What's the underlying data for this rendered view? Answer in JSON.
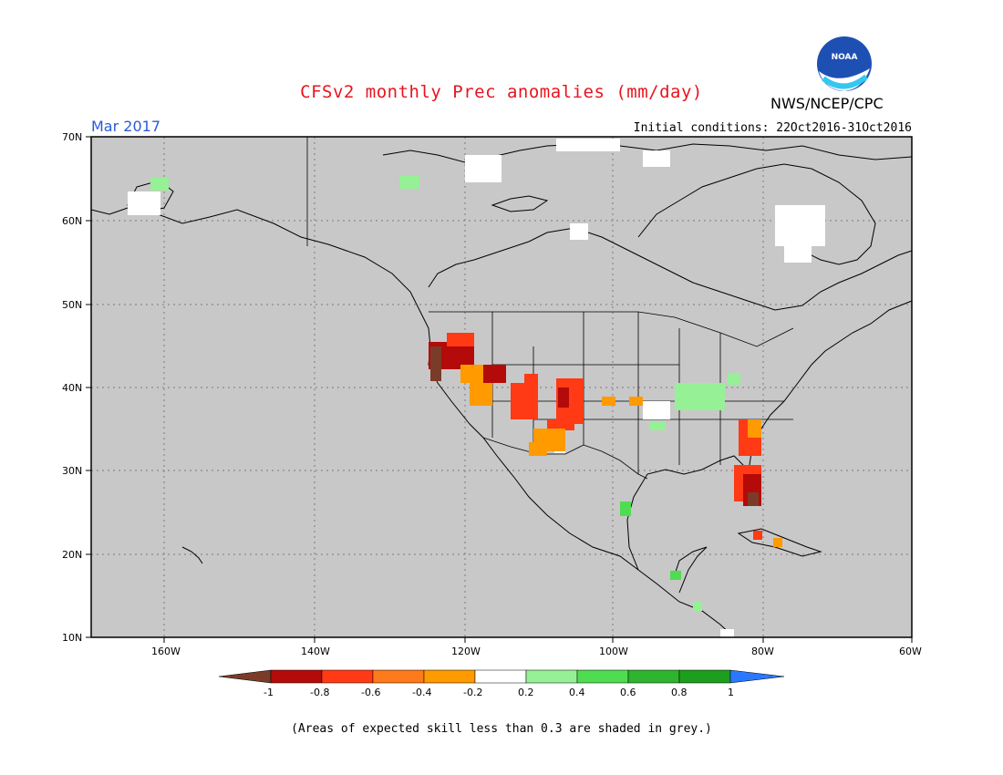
{
  "header": {
    "title": "CFSv2 monthly Prec anomalies (mm/day)",
    "org": "NWS/NCEP/CPC",
    "period": "Mar 2017",
    "initial_conditions": "Initial conditions: 22Oct2016-31Oct2016"
  },
  "logo": {
    "text": "NOAA"
  },
  "map": {
    "lat_labels": [
      "70N",
      "60N",
      "50N",
      "40N",
      "30N",
      "20N",
      "10N"
    ],
    "lon_labels": [
      "160W",
      "140W",
      "120W",
      "100W",
      "80W",
      "60W"
    ],
    "colors": {
      "skill_mask": "#c8c8c8",
      "land_outline": "#000000",
      "anom_minus_1": "#7a3c28",
      "anom_minus_08": "#b40a0a",
      "anom_minus_06": "#ff3a14",
      "anom_minus_04": "#ff9a00",
      "anom_neutral": "#ffffff",
      "anom_plus_02": "#96f096",
      "anom_plus_04": "#50dc50",
      "anom_plus_06": "#2eb42e",
      "anom_plus_08": "#1e9e1e",
      "anom_plus_1": "#2a78ff"
    }
  },
  "colorbar": {
    "labels": [
      "-1",
      "-0.8",
      "-0.6",
      "-0.4",
      "-0.2",
      "0.2",
      "0.4",
      "0.6",
      "0.8",
      "1"
    ],
    "colors": [
      "#b40a0a",
      "#ff3a14",
      "#ff9a00",
      "#ffffff",
      "#96f096",
      "#50dc50",
      "#2eb42e",
      "#1e9e1e"
    ]
  },
  "footnote": "(Areas of expected skill less than 0.3 are shaded in grey.)"
}
